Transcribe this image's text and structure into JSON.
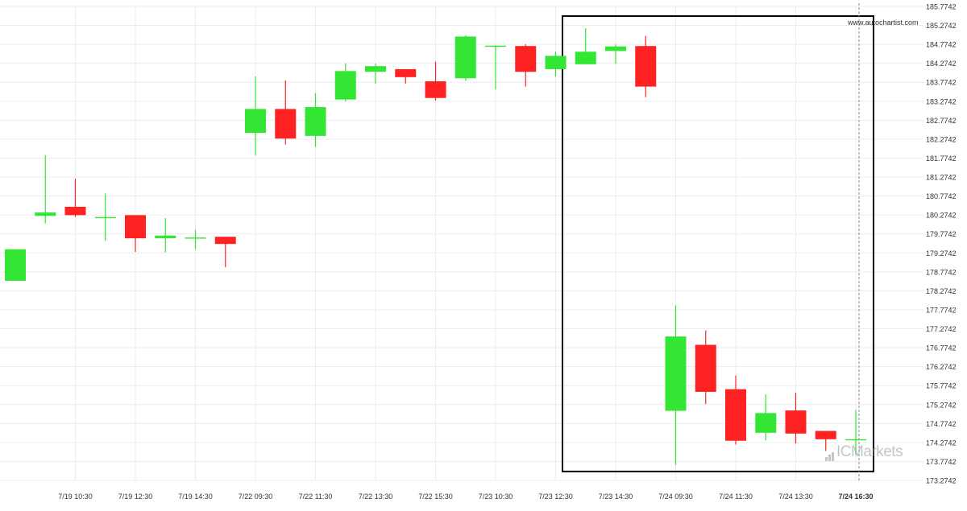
{
  "source_label": "www.autochartist.com",
  "watermark": {
    "brand": "ICMarkets"
  },
  "colors": {
    "up": "#33e633",
    "down": "#ff2222",
    "grid": "#ececec",
    "box": "#000000"
  },
  "chart_data": {
    "type": "candlestick",
    "title": "",
    "xlabel": "",
    "ylabel": "",
    "ylim": [
      173.0242,
      185.9242
    ],
    "y_ticks": [
      185.7742,
      185.2742,
      184.7742,
      184.2742,
      183.7742,
      183.2742,
      182.7742,
      182.2742,
      181.7742,
      181.2742,
      180.7742,
      180.2742,
      179.7742,
      179.2742,
      178.7742,
      178.2742,
      177.7742,
      177.2742,
      176.7742,
      176.2742,
      175.7742,
      175.2742,
      174.7742,
      174.2742,
      173.7742,
      173.2742
    ],
    "x_tick_labels": [
      {
        "index": 2,
        "label": "7/19 10:30"
      },
      {
        "index": 4,
        "label": "7/19 12:30"
      },
      {
        "index": 6,
        "label": "7/19 14:30"
      },
      {
        "index": 8,
        "label": "7/22 09:30"
      },
      {
        "index": 10,
        "label": "7/22 11:30"
      },
      {
        "index": 12,
        "label": "7/22 13:30"
      },
      {
        "index": 14,
        "label": "7/22 15:30"
      },
      {
        "index": 16,
        "label": "7/23 10:30"
      },
      {
        "index": 18,
        "label": "7/23 12:30"
      },
      {
        "index": 20,
        "label": "7/23 14:30"
      },
      {
        "index": 22,
        "label": "7/24 09:30"
      },
      {
        "index": 24,
        "label": "7/24 11:30"
      },
      {
        "index": 26,
        "label": "7/24 13:30"
      },
      {
        "index": 28,
        "label": "7/24 16:30",
        "bold": true
      }
    ],
    "candles": [
      {
        "o": 178.54,
        "h": 179.37,
        "l": 178.54,
        "c": 179.37
      },
      {
        "o": 180.25,
        "h": 181.85,
        "l": 180.05,
        "c": 180.34
      },
      {
        "o": 180.49,
        "h": 181.23,
        "l": 180.22,
        "c": 180.27
      },
      {
        "o": 180.22,
        "h": 180.84,
        "l": 179.59,
        "c": 180.22
      },
      {
        "o": 180.27,
        "h": 180.27,
        "l": 179.3,
        "c": 179.66
      },
      {
        "o": 179.66,
        "h": 180.19,
        "l": 179.29,
        "c": 179.73
      },
      {
        "o": 179.68,
        "h": 179.88,
        "l": 179.37,
        "c": 179.68
      },
      {
        "o": 179.7,
        "h": 179.7,
        "l": 178.9,
        "c": 179.51
      },
      {
        "o": 182.44,
        "h": 183.93,
        "l": 181.85,
        "c": 183.07
      },
      {
        "o": 183.07,
        "h": 183.82,
        "l": 182.13,
        "c": 182.29
      },
      {
        "o": 182.36,
        "h": 183.49,
        "l": 182.07,
        "c": 183.12
      },
      {
        "o": 183.32,
        "h": 184.27,
        "l": 183.27,
        "c": 184.07
      },
      {
        "o": 184.05,
        "h": 184.27,
        "l": 183.74,
        "c": 184.2
      },
      {
        "o": 184.12,
        "h": 184.12,
        "l": 183.74,
        "c": 183.91
      },
      {
        "o": 183.8,
        "h": 184.32,
        "l": 183.29,
        "c": 183.36
      },
      {
        "o": 183.88,
        "h": 185.01,
        "l": 183.81,
        "c": 184.98
      },
      {
        "o": 184.74,
        "h": 184.74,
        "l": 183.58,
        "c": 184.74
      },
      {
        "o": 184.73,
        "h": 184.78,
        "l": 183.66,
        "c": 184.05
      },
      {
        "o": 184.12,
        "h": 184.58,
        "l": 183.93,
        "c": 184.47
      },
      {
        "o": 184.25,
        "h": 185.2,
        "l": 184.25,
        "c": 184.58
      },
      {
        "o": 184.6,
        "h": 184.77,
        "l": 184.26,
        "c": 184.72
      },
      {
        "o": 184.73,
        "h": 185.0,
        "l": 183.38,
        "c": 183.66
      },
      {
        "o": 175.11,
        "h": 177.89,
        "l": 173.68,
        "c": 177.07
      },
      {
        "o": 176.85,
        "h": 177.23,
        "l": 175.29,
        "c": 175.61
      },
      {
        "o": 175.68,
        "h": 176.04,
        "l": 174.22,
        "c": 174.32
      },
      {
        "o": 174.53,
        "h": 175.54,
        "l": 174.33,
        "c": 175.05
      },
      {
        "o": 175.12,
        "h": 175.59,
        "l": 174.25,
        "c": 174.51
      },
      {
        "o": 174.58,
        "h": 174.58,
        "l": 174.05,
        "c": 174.36
      },
      {
        "o": 174.36,
        "h": 175.14,
        "l": 173.95,
        "c": 174.36
      }
    ],
    "pattern_box": {
      "from_index": 19,
      "to_index": 28,
      "y_top": 185.52,
      "y_bottom": 173.51
    },
    "current_marker_index": 28,
    "grid": true,
    "y_axis_position": "right"
  }
}
